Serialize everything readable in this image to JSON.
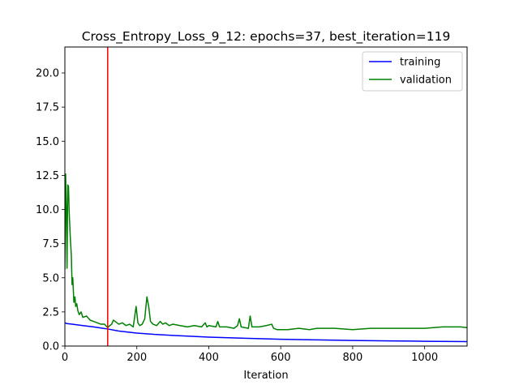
{
  "chart_data": {
    "type": "line",
    "title": "Cross_Entropy_Loss_9_12: epochs=37, best_iteration=119",
    "xlabel": "Iteration",
    "ylabel": "",
    "xlim": [
      0,
      1118
    ],
    "ylim": [
      0,
      21.9
    ],
    "x_ticks": [
      0,
      200,
      400,
      600,
      800,
      1000
    ],
    "x_tick_labels": [
      "0",
      "200",
      "400",
      "600",
      "800",
      "1000"
    ],
    "y_ticks": [
      0.0,
      2.5,
      5.0,
      7.5,
      10.0,
      12.5,
      15.0,
      17.5,
      20.0
    ],
    "y_tick_labels": [
      "0.0",
      "2.5",
      "5.0",
      "7.5",
      "10.0",
      "12.5",
      "15.0",
      "17.5",
      "20.0"
    ],
    "grid": false,
    "legend": {
      "position": "top-right"
    },
    "best_iteration_marker": {
      "x": 119,
      "color": "#ff0000"
    },
    "series": [
      {
        "name": "training",
        "color": "#0000ff",
        "x": [
          0,
          5,
          20,
          50,
          80,
          119,
          150,
          200,
          250,
          300,
          400,
          500,
          600,
          700,
          800,
          900,
          1000,
          1118
        ],
        "values": [
          1.7,
          1.65,
          1.6,
          1.5,
          1.4,
          1.25,
          1.1,
          0.95,
          0.85,
          0.78,
          0.65,
          0.57,
          0.5,
          0.45,
          0.41,
          0.38,
          0.35,
          0.33
        ]
      },
      {
        "name": "validation",
        "color": "#008000",
        "x": [
          0,
          2,
          4,
          6,
          8,
          10,
          12,
          15,
          18,
          20,
          22,
          25,
          28,
          30,
          33,
          36,
          40,
          45,
          50,
          60,
          70,
          80,
          90,
          100,
          110,
          119,
          125,
          130,
          135,
          140,
          150,
          160,
          170,
          180,
          190,
          198,
          203,
          208,
          215,
          222,
          228,
          233,
          238,
          245,
          255,
          265,
          272,
          280,
          290,
          300,
          320,
          340,
          360,
          380,
          390,
          395,
          400,
          420,
          425,
          430,
          450,
          470,
          480,
          485,
          490,
          510,
          515,
          520,
          540,
          560,
          575,
          580,
          590,
          600,
          620,
          650,
          680,
          700,
          750,
          800,
          850,
          900,
          950,
          1000,
          1050,
          1080,
          1100,
          1118
        ],
        "values": [
          5.6,
          12.6,
          10.2,
          5.7,
          11.8,
          11.7,
          9.8,
          8.0,
          6.6,
          4.5,
          5.0,
          3.2,
          3.6,
          2.9,
          3.1,
          2.6,
          2.3,
          2.5,
          2.1,
          2.2,
          1.9,
          1.8,
          1.7,
          1.6,
          1.6,
          1.35,
          1.5,
          1.6,
          1.9,
          1.8,
          1.6,
          1.7,
          1.5,
          1.6,
          1.4,
          2.9,
          1.7,
          1.5,
          1.6,
          2.0,
          3.6,
          2.9,
          1.8,
          1.6,
          1.5,
          1.8,
          1.6,
          1.7,
          1.5,
          1.6,
          1.5,
          1.4,
          1.5,
          1.4,
          1.7,
          1.4,
          1.5,
          1.4,
          1.8,
          1.4,
          1.4,
          1.3,
          1.5,
          2.0,
          1.4,
          1.3,
          2.2,
          1.4,
          1.4,
          1.5,
          1.6,
          1.3,
          1.2,
          1.2,
          1.2,
          1.3,
          1.2,
          1.3,
          1.3,
          1.2,
          1.3,
          1.3,
          1.3,
          1.3,
          1.4,
          1.4,
          1.4,
          1.35
        ]
      }
    ]
  }
}
